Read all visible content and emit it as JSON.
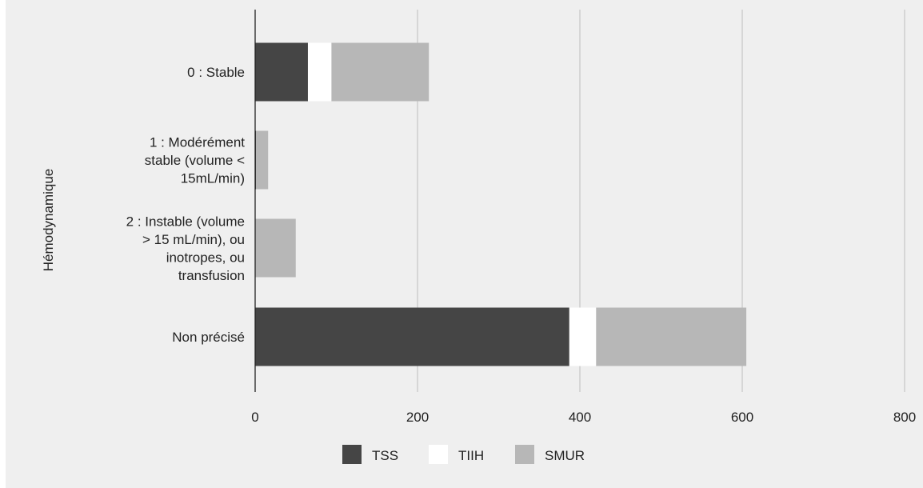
{
  "chart_data": {
    "type": "bar",
    "orientation": "horizontal",
    "stacked": true,
    "ylabel": "Hémodynamique",
    "xlabel": "",
    "xlim": [
      0,
      800
    ],
    "x_ticks": [
      "0",
      "200",
      "400",
      "600",
      "800"
    ],
    "grid": true,
    "legend_position": "bottom",
    "categories": [
      "0 : Stable",
      "1 : Modérément stable (volume < 15mL/min)",
      "2 : Instable (volume > 15 mL/min), ou inotropes, ou transfusion",
      "Non précisé"
    ],
    "category_lines": [
      [
        "0 : Stable"
      ],
      [
        "1 : Modérément",
        "stable (volume <",
        "15mL/min)"
      ],
      [
        "2 : Instable (volume",
        "> 15 mL/min), ou",
        "inotropes, ou",
        "transfusion"
      ],
      [
        "Non précisé"
      ]
    ],
    "series": [
      {
        "name": "TSS",
        "color": "#454545",
        "values": [
          65,
          1,
          0,
          387
        ]
      },
      {
        "name": "TIIH",
        "color": "#ffffff",
        "values": [
          29,
          0,
          0,
          33
        ]
      },
      {
        "name": "SMUR",
        "color": "#b7b7b7",
        "values": [
          120,
          15,
          50,
          185
        ]
      }
    ]
  }
}
